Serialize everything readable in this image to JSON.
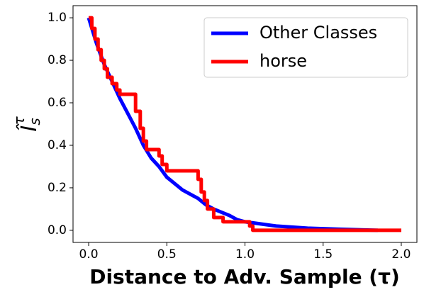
{
  "chart_data": {
    "type": "line",
    "x_label": "Distance to Adv. Sample (τ)",
    "y_label": "Î",
    "y_label_sub": "s",
    "y_label_sup": "τ",
    "xlim": [
      -0.1,
      2.1
    ],
    "ylim": [
      -0.057,
      1.057
    ],
    "xticks": [
      {
        "value": 0,
        "label": "0.0"
      },
      0.5,
      {
        "value": 1,
        "label": "1.0"
      },
      1.5,
      {
        "value": 2,
        "label": "2.0"
      }
    ],
    "yticks": [
      {
        "value": 0,
        "label": "0.0"
      },
      0.2,
      0.4,
      0.6,
      0.8,
      {
        "value": 1,
        "label": "1.0"
      }
    ],
    "legend": "upper right",
    "series": [
      {
        "name": "Other Classes",
        "color": "#0000ff",
        "x": [
          0,
          0.05,
          0.1,
          0.15,
          0.2,
          0.25,
          0.3,
          0.35,
          0.4,
          0.45,
          0.5,
          0.55,
          0.6,
          0.65,
          0.7,
          0.75,
          0.8,
          0.85,
          0.9,
          0.95,
          1.0,
          1.1,
          1.2,
          1.4,
          1.6,
          1.85
        ],
        "values": [
          1.0,
          0.88,
          0.78,
          0.7,
          0.62,
          0.55,
          0.48,
          0.4,
          0.34,
          0.3,
          0.25,
          0.22,
          0.19,
          0.17,
          0.15,
          0.12,
          0.1,
          0.085,
          0.07,
          0.05,
          0.04,
          0.03,
          0.02,
          0.01,
          0.005,
          0.0
        ]
      },
      {
        "name": "horse",
        "color": "#ff0000",
        "x": [
          0,
          0.02,
          0.02,
          0.04,
          0.04,
          0.06,
          0.06,
          0.08,
          0.08,
          0.1,
          0.1,
          0.12,
          0.12,
          0.15,
          0.15,
          0.18,
          0.18,
          0.2,
          0.2,
          0.3,
          0.3,
          0.33,
          0.33,
          0.35,
          0.35,
          0.37,
          0.37,
          0.45,
          0.45,
          0.47,
          0.47,
          0.5,
          0.5,
          0.7,
          0.7,
          0.72,
          0.72,
          0.74,
          0.74,
          0.76,
          0.76,
          0.8,
          0.8,
          0.86,
          0.86,
          0.9,
          0.9,
          1.03,
          1.03,
          1.05,
          1.05,
          2.0
        ],
        "values": [
          1.0,
          1.0,
          0.95,
          0.95,
          0.9,
          0.9,
          0.85,
          0.85,
          0.8,
          0.8,
          0.76,
          0.76,
          0.72,
          0.72,
          0.69,
          0.69,
          0.66,
          0.66,
          0.64,
          0.64,
          0.56,
          0.56,
          0.48,
          0.48,
          0.42,
          0.42,
          0.38,
          0.38,
          0.35,
          0.35,
          0.31,
          0.31,
          0.28,
          0.28,
          0.24,
          0.24,
          0.18,
          0.18,
          0.14,
          0.14,
          0.1,
          0.1,
          0.06,
          0.06,
          0.04,
          0.04,
          0.04,
          0.04,
          0.02,
          0.02,
          0.0,
          0.0
        ]
      }
    ]
  }
}
